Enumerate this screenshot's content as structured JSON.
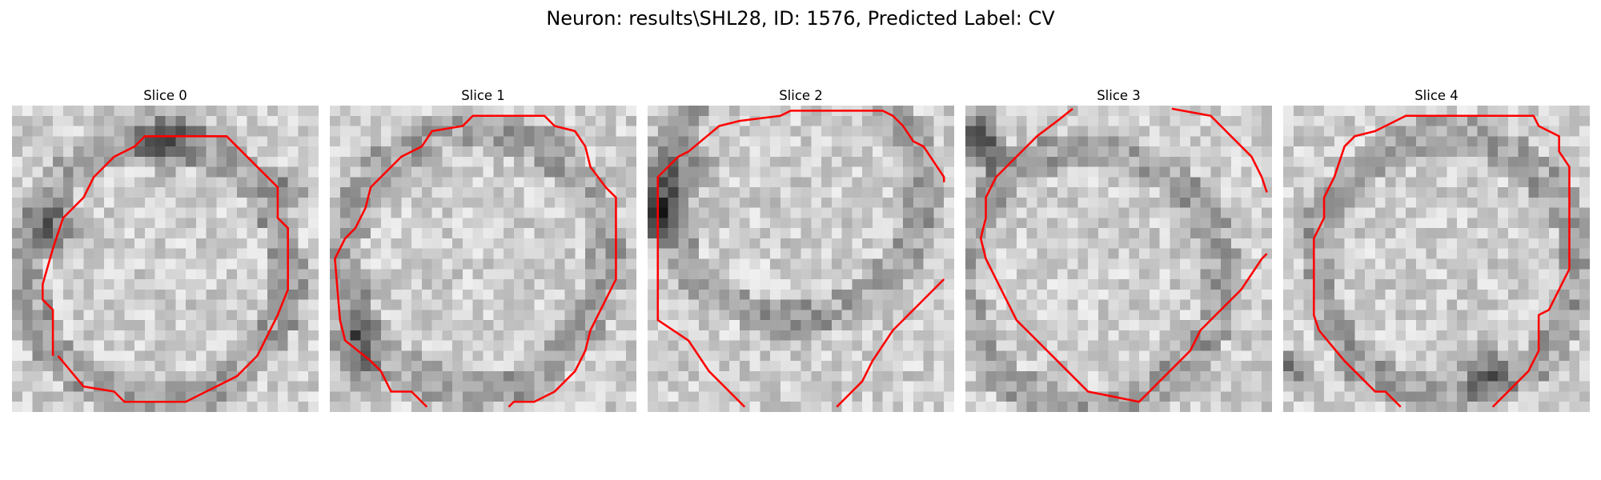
{
  "figure": {
    "title": "Neuron: results\\SHL28, ID: 1576, Predicted Label: CV"
  },
  "panels": [
    {
      "title": "Slice 0"
    },
    {
      "title": "Slice 1"
    },
    {
      "title": "Slice 2"
    },
    {
      "title": "Slice 3"
    },
    {
      "title": "Slice 4"
    }
  ],
  "colors": {
    "contour": "#ff0000",
    "background": "#ffffff",
    "colormap": "gray"
  }
}
